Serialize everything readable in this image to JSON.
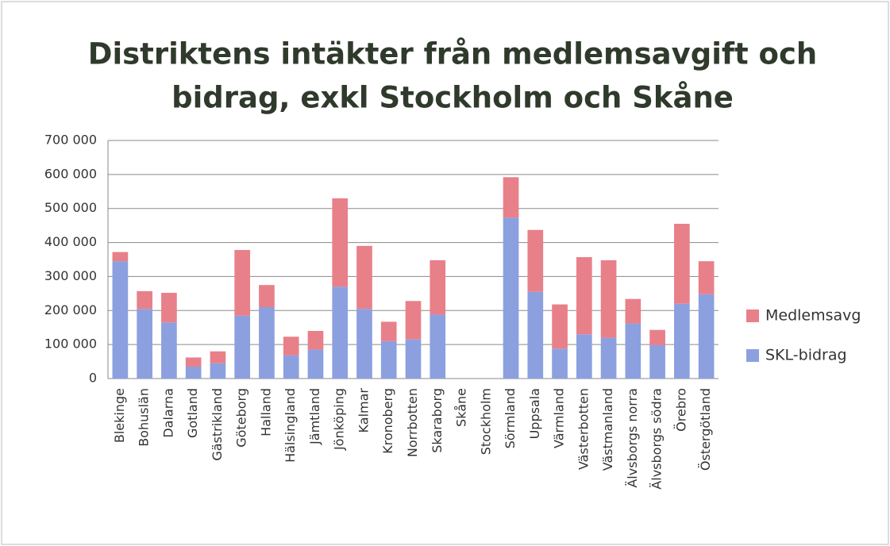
{
  "chart_data": {
    "type": "stacked_bar",
    "title": [
      "Distriktens intäkter från medlemsavgift och",
      "bidrag, exkl Stockholm och Skåne"
    ],
    "categories": [
      "Blekinge",
      "Bohuslän",
      "Dalarna",
      "Gotland",
      "Gästrikland",
      "Göteborg",
      "Halland",
      "Hälsingland",
      "Jämtland",
      "Jönköping",
      "Kalmar",
      "Kronoberg",
      "Norrbotten",
      "Skaraborg",
      "Skåne",
      "Stockholm",
      "Sörmland",
      "Uppsala",
      "Värmland",
      "Västerbotten",
      "Västmanland",
      "Älvsborgs norra",
      "Älvsborgs södra",
      "Örebro",
      "Östergötland"
    ],
    "series": [
      {
        "name": "SKL-bidrag",
        "color": "#8ca0e0",
        "values": [
          345000,
          205000,
          165000,
          35000,
          45000,
          185000,
          210000,
          68000,
          85000,
          270000,
          205000,
          110000,
          115000,
          188000,
          null,
          null,
          473000,
          255000,
          88000,
          130000,
          120000,
          162000,
          98000,
          220000,
          248000
        ]
      },
      {
        "name": "Medlemsavg",
        "color": "#e8808a",
        "values": [
          27000,
          52000,
          87000,
          27000,
          35000,
          193000,
          65000,
          55000,
          55000,
          260000,
          185000,
          57000,
          113000,
          160000,
          null,
          null,
          119000,
          182000,
          130000,
          227000,
          228000,
          72000,
          45000,
          235000,
          97000
        ]
      }
    ],
    "ylim": [
      0,
      700000
    ],
    "yticks": [
      {
        "value": 0,
        "label": "0"
      },
      {
        "value": 100000,
        "label": "100 000"
      },
      {
        "value": 200000,
        "label": "200 000"
      },
      {
        "value": 300000,
        "label": "300 000"
      },
      {
        "value": 400000,
        "label": "400 000"
      },
      {
        "value": 500000,
        "label": "500 000"
      },
      {
        "value": 600000,
        "label": "600 000"
      },
      {
        "value": 700000,
        "label": "700 000"
      }
    ],
    "grid": true,
    "legend": "right"
  }
}
